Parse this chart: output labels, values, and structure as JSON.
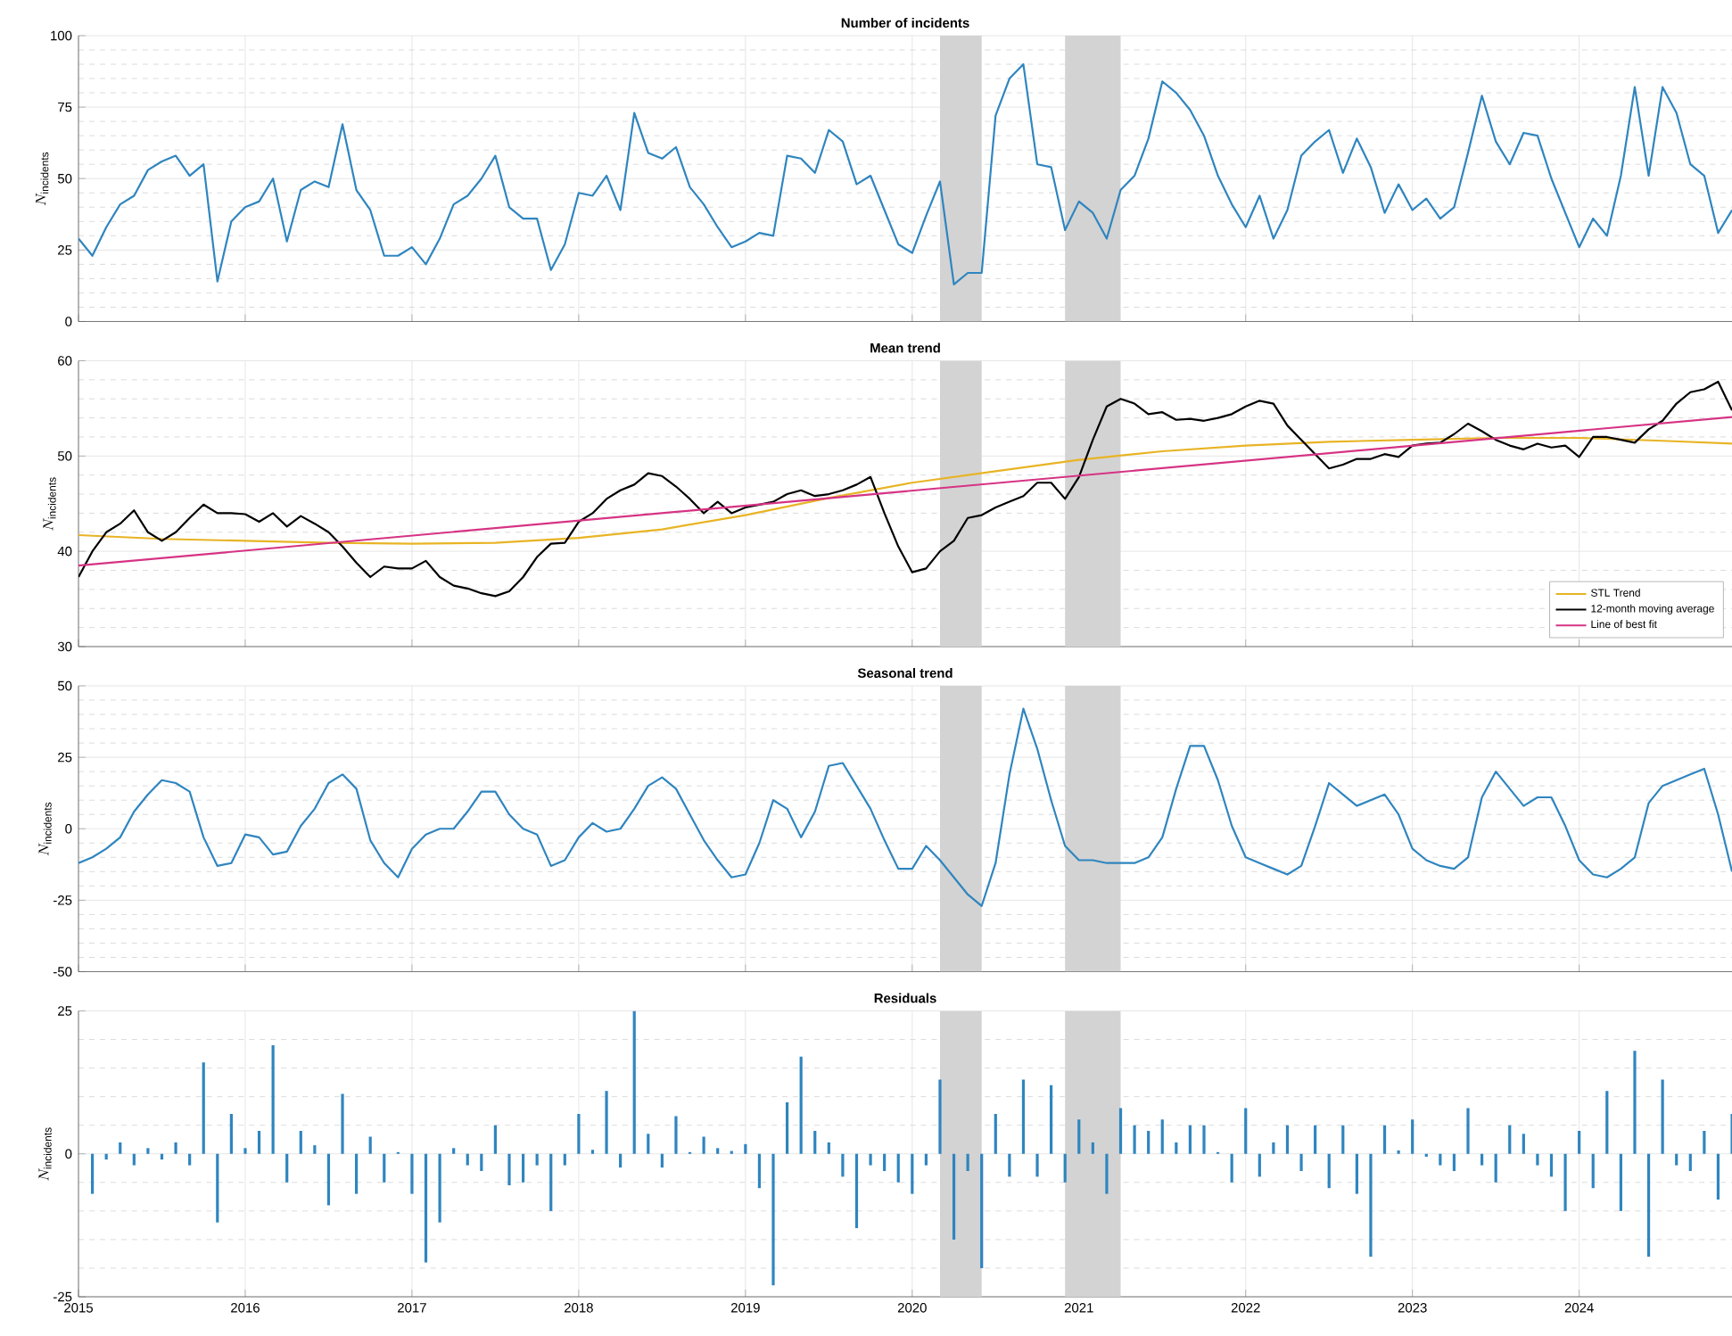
{
  "chart_data": [
    {
      "type": "line",
      "title": "Number of incidents",
      "ylabel": "N_{\\mathrm{incidents}}",
      "color": "#2f85bf",
      "x": [
        "2015-01",
        "2015-02",
        "2015-03",
        "2015-04",
        "2015-05",
        "2015-06",
        "2015-07",
        "2015-08",
        "2015-09",
        "2015-10",
        "2015-11",
        "2015-12",
        "2016-01",
        "2016-02",
        "2016-03",
        "2016-04",
        "2016-05",
        "2016-06",
        "2016-07",
        "2016-08",
        "2016-09",
        "2016-10",
        "2016-11",
        "2016-12",
        "2017-01",
        "2017-02",
        "2017-03",
        "2017-04",
        "2017-05",
        "2017-06",
        "2017-07",
        "2017-08",
        "2017-09",
        "2017-10",
        "2017-11",
        "2017-12",
        "2018-01",
        "2018-02",
        "2018-03",
        "2018-04",
        "2018-05",
        "2018-06",
        "2018-07",
        "2018-08",
        "2018-09",
        "2018-10",
        "2018-11",
        "2018-12",
        "2019-01",
        "2019-02",
        "2019-03",
        "2019-04",
        "2019-05",
        "2019-06",
        "2019-07",
        "2019-08",
        "2019-09",
        "2019-10",
        "2019-11",
        "2019-12",
        "2020-01",
        "2020-02",
        "2020-03",
        "2020-04",
        "2020-05",
        "2020-06",
        "2020-07",
        "2020-08",
        "2020-09",
        "2020-10",
        "2020-11",
        "2020-12",
        "2021-01",
        "2021-02",
        "2021-03",
        "2021-04",
        "2021-05",
        "2021-06",
        "2021-07",
        "2021-08",
        "2021-09",
        "2021-10",
        "2021-11",
        "2021-12",
        "2022-01",
        "2022-02",
        "2022-03",
        "2022-04",
        "2022-05",
        "2022-06",
        "2022-07",
        "2022-08",
        "2022-09",
        "2022-10",
        "2022-11",
        "2022-12",
        "2023-01",
        "2023-02",
        "2023-03",
        "2023-04",
        "2023-05",
        "2023-06",
        "2023-07",
        "2023-08",
        "2023-09",
        "2023-10",
        "2023-11",
        "2023-12",
        "2024-01",
        "2024-02",
        "2024-03",
        "2024-04",
        "2024-05",
        "2024-06",
        "2024-07",
        "2024-08",
        "2024-09",
        "2024-10",
        "2024-11",
        "2024-12"
      ],
      "values": [
        29,
        23,
        33,
        41,
        44,
        53,
        56,
        58,
        51,
        55,
        14,
        35,
        40,
        42,
        50,
        28,
        46,
        49,
        47,
        69,
        46,
        39,
        23,
        23,
        26,
        20,
        29,
        41,
        44,
        50,
        58,
        40,
        36,
        36,
        18,
        27,
        45,
        44,
        51,
        39,
        73,
        59,
        57,
        61,
        47,
        41,
        33,
        26,
        28,
        31,
        30,
        58,
        57,
        52,
        67,
        63,
        48,
        51,
        39,
        27,
        24,
        37,
        49,
        13,
        17,
        17,
        72,
        85,
        90,
        55,
        54,
        32,
        42,
        38,
        29,
        46,
        51,
        64,
        84,
        80,
        74,
        65,
        51,
        41,
        33,
        44,
        29,
        39,
        58,
        63,
        67,
        52,
        64,
        54,
        38,
        48,
        39,
        43,
        36,
        40,
        59,
        79,
        63,
        55,
        66,
        65,
        50,
        38,
        26,
        36,
        30,
        51,
        82,
        51,
        82,
        73,
        55,
        51,
        31,
        39
      ],
      "xlim": [
        "2015-01",
        "2024-12"
      ],
      "xticks": [
        "2015",
        "2016",
        "2017",
        "2018",
        "2019",
        "2020",
        "2021",
        "2022",
        "2023",
        "2024"
      ],
      "ylim": [
        0,
        100
      ],
      "yticks": [
        0,
        25,
        50,
        75,
        100
      ],
      "grid": true,
      "tick_labels": "y",
      "bands": [
        {
          "axis": "x",
          "from": "2020-03",
          "to": "2020-06",
          "color": "#d3d3d3"
        },
        {
          "axis": "x",
          "from": "2020-12",
          "to": "2021-04",
          "color": "#d3d3d3"
        }
      ]
    },
    {
      "type": "line",
      "title": "Mean trend",
      "ylabel": "N_{\\mathrm{incidents}}",
      "x": [
        "2015-01",
        "2015-02",
        "2015-03",
        "2015-04",
        "2015-05",
        "2015-06",
        "2015-07",
        "2015-08",
        "2015-09",
        "2015-10",
        "2015-11",
        "2015-12",
        "2016-01",
        "2016-02",
        "2016-03",
        "2016-04",
        "2016-05",
        "2016-06",
        "2016-07",
        "2016-08",
        "2016-09",
        "2016-10",
        "2016-11",
        "2016-12",
        "2017-01",
        "2017-02",
        "2017-03",
        "2017-04",
        "2017-05",
        "2017-06",
        "2017-07",
        "2017-08",
        "2017-09",
        "2017-10",
        "2017-11",
        "2017-12",
        "2018-01",
        "2018-02",
        "2018-03",
        "2018-04",
        "2018-05",
        "2018-06",
        "2018-07",
        "2018-08",
        "2018-09",
        "2018-10",
        "2018-11",
        "2018-12",
        "2019-01",
        "2019-02",
        "2019-03",
        "2019-04",
        "2019-05",
        "2019-06",
        "2019-07",
        "2019-08",
        "2019-09",
        "2019-10",
        "2019-11",
        "2019-12",
        "2020-01",
        "2020-02",
        "2020-03",
        "2020-04",
        "2020-05",
        "2020-06",
        "2020-07",
        "2020-08",
        "2020-09",
        "2020-10",
        "2020-11",
        "2020-12",
        "2021-01",
        "2021-02",
        "2021-03",
        "2021-04",
        "2021-05",
        "2021-06",
        "2021-07",
        "2021-08",
        "2021-09",
        "2021-10",
        "2021-11",
        "2021-12",
        "2022-01",
        "2022-02",
        "2022-03",
        "2022-04",
        "2022-05",
        "2022-06",
        "2022-07",
        "2022-08",
        "2022-09",
        "2022-10",
        "2022-11",
        "2022-12",
        "2023-01",
        "2023-02",
        "2023-03",
        "2023-04",
        "2023-05",
        "2023-06",
        "2023-07",
        "2023-08",
        "2023-09",
        "2023-10",
        "2023-11",
        "2023-12",
        "2024-01",
        "2024-02",
        "2024-03",
        "2024-04",
        "2024-05",
        "2024-06",
        "2024-07",
        "2024-08",
        "2024-09",
        "2024-10",
        "2024-11",
        "2024-12"
      ],
      "series": [
        {
          "name": "STL Trend",
          "color": "#e8b425",
          "x": [
            "2015-01",
            "2015-07",
            "2016-01",
            "2016-07",
            "2017-01",
            "2017-07",
            "2018-01",
            "2018-07",
            "2019-01",
            "2019-07",
            "2020-01",
            "2020-07",
            "2021-01",
            "2021-07",
            "2022-01",
            "2022-07",
            "2023-01",
            "2023-07",
            "2024-01",
            "2024-07",
            "2024-12"
          ],
          "values": [
            41.7,
            41.3,
            41.1,
            40.9,
            40.8,
            40.9,
            41.4,
            42.3,
            43.8,
            45.6,
            47.2,
            48.4,
            49.6,
            50.5,
            51.1,
            51.5,
            51.7,
            51.9,
            51.9,
            51.6,
            51.3
          ]
        },
        {
          "name": "12-month moving average",
          "color": "#000000",
          "values": [
            37.3,
            40,
            42,
            42.9,
            44.3,
            42,
            41.1,
            42,
            43.5,
            44.9,
            44,
            44,
            43.9,
            43.1,
            44,
            42.6,
            43.7,
            42.9,
            42,
            40.5,
            38.8,
            37.3,
            38.4,
            38.2,
            38.2,
            39,
            37.3,
            36.4,
            36.1,
            35.6,
            35.3,
            35.8,
            37.3,
            39.4,
            40.8,
            40.9,
            43.1,
            44,
            45.5,
            46.4,
            47,
            48.2,
            47.9,
            46.8,
            45.5,
            44,
            45.2,
            44,
            44.6,
            44.9,
            45.2,
            46,
            46.4,
            45.8,
            46,
            46.4,
            47,
            47.8,
            44,
            40.5,
            37.8,
            38.2,
            40,
            41.1,
            43.5,
            43.8,
            44.6,
            45.2,
            45.8,
            47.2,
            47.2,
            45.5,
            47.8,
            51.7,
            55.2,
            56,
            55.5,
            54.4,
            54.6,
            53.8,
            53.9,
            53.7,
            54,
            54.4,
            55.2,
            55.8,
            55.5,
            53.2,
            51.7,
            50.2,
            48.7,
            49.1,
            49.7,
            49.7,
            50.2,
            49.9,
            51.1,
            51.3,
            51.4,
            52.3,
            53.4,
            52.6,
            51.7,
            51.1,
            50.7,
            51.3,
            50.9,
            51.1,
            49.9,
            52,
            52,
            51.7,
            51.4,
            52.8,
            53.7,
            55.5,
            56.7,
            57,
            57.8,
            54.8
          ]
        },
        {
          "name": "Line of best fit",
          "color": "#d63384",
          "x": [
            "2015-01",
            "2024-12"
          ],
          "values": [
            38.5,
            54.1
          ]
        }
      ],
      "xlim": [
        "2015-01",
        "2024-12"
      ],
      "xticks": [
        "2015",
        "2016",
        "2017",
        "2018",
        "2019",
        "2020",
        "2021",
        "2022",
        "2023",
        "2024"
      ],
      "ylim": [
        30,
        60
      ],
      "yticks": [
        30,
        40,
        50,
        60
      ],
      "grid": true,
      "tick_labels": "y",
      "legend": "bottom right",
      "bands": [
        {
          "axis": "x",
          "from": "2020-03",
          "to": "2020-06",
          "color": "#d3d3d3"
        },
        {
          "axis": "x",
          "from": "2020-12",
          "to": "2021-04",
          "color": "#d3d3d3"
        }
      ]
    },
    {
      "type": "line",
      "title": "Seasonal trend",
      "ylabel": "N_{\\mathrm{incidents}}",
      "color": "#2f85bf",
      "x": [
        "2015-01",
        "2015-02",
        "2015-03",
        "2015-04",
        "2015-05",
        "2015-06",
        "2015-07",
        "2015-08",
        "2015-09",
        "2015-10",
        "2015-11",
        "2015-12",
        "2016-01",
        "2016-02",
        "2016-03",
        "2016-04",
        "2016-05",
        "2016-06",
        "2016-07",
        "2016-08",
        "2016-09",
        "2016-10",
        "2016-11",
        "2016-12",
        "2017-01",
        "2017-02",
        "2017-03",
        "2017-04",
        "2017-05",
        "2017-06",
        "2017-07",
        "2017-08",
        "2017-09",
        "2017-10",
        "2017-11",
        "2017-12",
        "2018-01",
        "2018-02",
        "2018-03",
        "2018-04",
        "2018-05",
        "2018-06",
        "2018-07",
        "2018-08",
        "2018-09",
        "2018-10",
        "2018-11",
        "2018-12",
        "2019-01",
        "2019-02",
        "2019-03",
        "2019-04",
        "2019-05",
        "2019-06",
        "2019-07",
        "2019-08",
        "2019-09",
        "2019-10",
        "2019-11",
        "2019-12",
        "2020-01",
        "2020-02",
        "2020-03",
        "2020-04",
        "2020-05",
        "2020-06",
        "2020-07",
        "2020-08",
        "2020-09",
        "2020-10",
        "2020-11",
        "2020-12",
        "2021-01",
        "2021-02",
        "2021-03",
        "2021-04",
        "2021-05",
        "2021-06",
        "2021-07",
        "2021-08",
        "2021-09",
        "2021-10",
        "2021-11",
        "2021-12",
        "2022-01",
        "2022-02",
        "2022-03",
        "2022-04",
        "2022-05",
        "2022-06",
        "2022-07",
        "2022-08",
        "2022-09",
        "2022-10",
        "2022-11",
        "2022-12",
        "2023-01",
        "2023-02",
        "2023-03",
        "2023-04",
        "2023-05",
        "2023-06",
        "2023-07",
        "2023-08",
        "2023-09",
        "2023-10",
        "2023-11",
        "2023-12",
        "2024-01",
        "2024-02",
        "2024-03",
        "2024-04",
        "2024-05",
        "2024-06",
        "2024-07",
        "2024-08",
        "2024-09",
        "2024-10",
        "2024-11",
        "2024-12"
      ],
      "values": [
        -12,
        -10,
        -7,
        -3,
        6,
        12,
        17,
        16,
        13,
        -3,
        -13,
        -12,
        -2,
        -3,
        -9,
        -8,
        1,
        7,
        16,
        19,
        14,
        -4,
        -12,
        -17,
        -7,
        -2,
        0,
        0,
        6,
        13,
        13,
        5,
        0,
        -2,
        -13,
        -11,
        -3,
        2,
        -1,
        0,
        7,
        15,
        18,
        14,
        5,
        -4,
        -11,
        -17,
        -16,
        -5,
        10,
        7,
        -3,
        6,
        22,
        23,
        15,
        7,
        -4,
        -14,
        -14,
        -6,
        -11,
        -17,
        -23,
        -27,
        -12,
        19,
        42,
        28,
        10,
        -6,
        -11,
        -11,
        -12,
        -12,
        -12,
        -10,
        -3,
        14,
        29,
        29,
        17,
        1,
        -10,
        -12,
        -14,
        -16,
        -13,
        1,
        16,
        12,
        8,
        10,
        12,
        5,
        -7,
        -11,
        -13,
        -14,
        -10,
        11,
        20,
        14,
        8,
        11,
        11,
        1,
        -11,
        -16,
        -17,
        -14,
        -10,
        9,
        15,
        17,
        19,
        21,
        5,
        -15
      ],
      "xlim": [
        "2015-01",
        "2024-12"
      ],
      "xticks": [
        "2015",
        "2016",
        "2017",
        "2018",
        "2019",
        "2020",
        "2021",
        "2022",
        "2023",
        "2024"
      ],
      "ylim": [
        -50,
        50
      ],
      "yticks": [
        -50,
        -25,
        0,
        25,
        50
      ],
      "grid": true,
      "tick_labels": "y",
      "bands": [
        {
          "axis": "x",
          "from": "2020-03",
          "to": "2020-06",
          "color": "#d3d3d3"
        },
        {
          "axis": "x",
          "from": "2020-12",
          "to": "2021-04",
          "color": "#d3d3d3"
        }
      ]
    },
    {
      "type": "bar",
      "title": "Residuals",
      "ylabel": "N_{\\mathrm{incidents}}",
      "color": "#2f85bf",
      "x": [
        "2015-02",
        "2015-03",
        "2015-04",
        "2015-05",
        "2015-06",
        "2015-07",
        "2015-08",
        "2015-09",
        "2015-10",
        "2015-11",
        "2015-12",
        "2016-01",
        "2016-02",
        "2016-03",
        "2016-04",
        "2016-05",
        "2016-06",
        "2016-07",
        "2016-08",
        "2016-09",
        "2016-10",
        "2016-11",
        "2016-12",
        "2017-01",
        "2017-02",
        "2017-03",
        "2017-04",
        "2017-05",
        "2017-06",
        "2017-07",
        "2017-08",
        "2017-09",
        "2017-10",
        "2017-11",
        "2017-12",
        "2018-01",
        "2018-02",
        "2018-03",
        "2018-04",
        "2018-05",
        "2018-06",
        "2018-07",
        "2018-08",
        "2018-09",
        "2018-10",
        "2018-11",
        "2018-12",
        "2019-01",
        "2019-02",
        "2019-03",
        "2019-04",
        "2019-05",
        "2019-06",
        "2019-07",
        "2019-08",
        "2019-09",
        "2019-10",
        "2019-11",
        "2019-12",
        "2020-01",
        "2020-02",
        "2020-03",
        "2020-04",
        "2020-05",
        "2020-06",
        "2020-07",
        "2020-08",
        "2020-09",
        "2020-10",
        "2020-11",
        "2020-12",
        "2021-01",
        "2021-02",
        "2021-03",
        "2021-04",
        "2021-05",
        "2021-06",
        "2021-07",
        "2021-08",
        "2021-09",
        "2021-10",
        "2021-11",
        "2021-12",
        "2022-01",
        "2022-02",
        "2022-03",
        "2022-04",
        "2022-05",
        "2022-06",
        "2022-07",
        "2022-08",
        "2022-09",
        "2022-10",
        "2022-11",
        "2022-12",
        "2023-01",
        "2023-02",
        "2023-03",
        "2023-04",
        "2023-05",
        "2023-06",
        "2023-07",
        "2023-08",
        "2023-09",
        "2023-10",
        "2023-11",
        "2023-12",
        "2024-01",
        "2024-02",
        "2024-03",
        "2024-04",
        "2024-05",
        "2024-06",
        "2024-07",
        "2024-08",
        "2024-09",
        "2024-10",
        "2024-11",
        "2024-12"
      ],
      "values": [
        -7,
        -1,
        2,
        -2,
        1,
        -1,
        2,
        -2,
        16,
        -12,
        7,
        1,
        4,
        19,
        -5,
        4,
        1.5,
        -9,
        10.5,
        -7,
        3,
        -5,
        0.3,
        -7,
        -19,
        -12,
        1,
        -2,
        -3,
        5,
        -5.5,
        -5,
        -2,
        -10,
        -2,
        7,
        0.7,
        11,
        -2.4,
        25,
        3.5,
        -2.4,
        6.6,
        0.3,
        3,
        1,
        0.5,
        1.7,
        -6,
        -23,
        9,
        17,
        4,
        2,
        -4,
        -13,
        -2,
        -3,
        -5,
        -7,
        -2,
        13,
        -15,
        -3,
        -20,
        7,
        -4,
        13,
        -4,
        12,
        -5,
        6,
        2,
        -7,
        8,
        5,
        4,
        6,
        2,
        5,
        5,
        0.3,
        -5,
        8,
        -4,
        2,
        5,
        -3,
        5,
        -6,
        5,
        -7,
        -18,
        5,
        0.6,
        6,
        -0.5,
        -2,
        -3,
        8,
        -2,
        -5,
        5,
        3.5,
        -2,
        -4,
        -10,
        4,
        -6,
        11,
        -10,
        18,
        -18,
        13,
        -2,
        -3,
        4,
        -8,
        7
      ],
      "xlim": [
        "2015-01",
        "2024-12"
      ],
      "xticks": [
        "2015",
        "2016",
        "2017",
        "2018",
        "2019",
        "2020",
        "2021",
        "2022",
        "2023",
        "2024"
      ],
      "ylim": [
        -25,
        25
      ],
      "yticks": [
        -25,
        0,
        25
      ],
      "grid": true,
      "bands": [
        {
          "axis": "x",
          "from": "2020-03",
          "to": "2020-06",
          "color": "#d3d3d3"
        },
        {
          "axis": "x",
          "from": "2020-12",
          "to": "2021-04",
          "color": "#d3d3d3"
        }
      ]
    }
  ]
}
